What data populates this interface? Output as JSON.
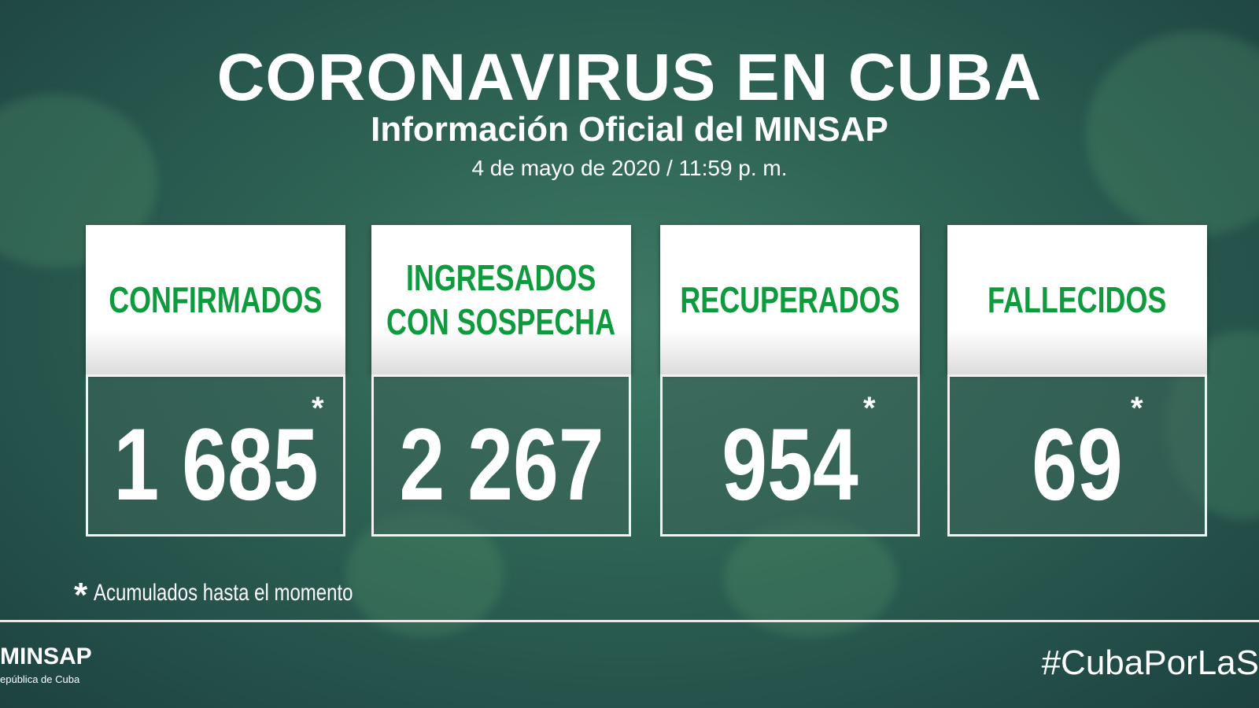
{
  "header": {
    "title": "CORONAVIRUS EN CUBA",
    "subtitle": "Información Oficial del MINSAP",
    "date": "4 de mayo de 2020 / 11:59 p. m."
  },
  "cards": [
    {
      "label": [
        "CONFIRMADOS"
      ],
      "value": "1 685",
      "marker": "*"
    },
    {
      "label": [
        "INGRESADOS",
        "CON SOSPECHA"
      ],
      "value": "2 267"
    },
    {
      "label": [
        "RECUPERADOS"
      ],
      "value": "954",
      "marker": "*"
    },
    {
      "label": [
        "FALLECIDOS"
      ],
      "value": "69",
      "marker": "*"
    }
  ],
  "footnote": {
    "marker": "*",
    "text": "Acumulados hasta el momento"
  },
  "footer": {
    "logo": "MINSAP",
    "logo_subtitle": "epública de Cuba",
    "hashtag": "#CubaPorLaS"
  }
}
